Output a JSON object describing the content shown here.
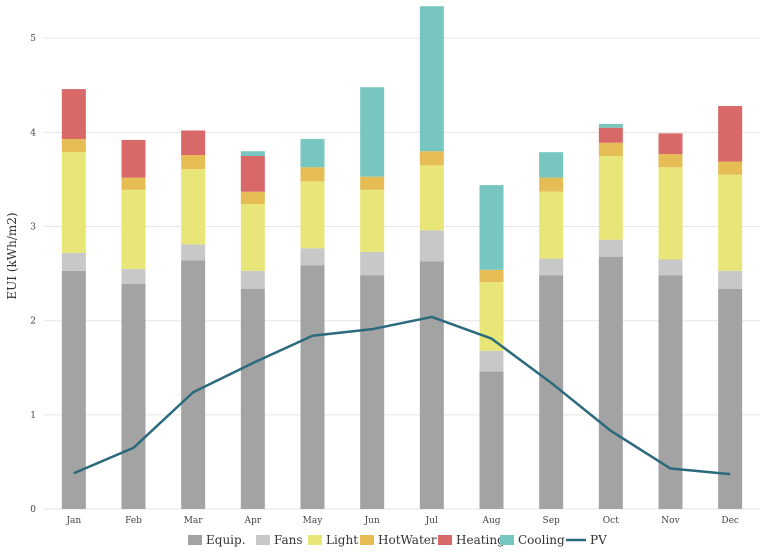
{
  "chart_data": {
    "type": "bar",
    "stacked": true,
    "title": "",
    "xlabel": "",
    "ylabel": "EUI (kWh/m2)",
    "ylim": [
      0,
      5.3
    ],
    "yticks": [
      "0",
      "1",
      "2",
      "3",
      "4",
      "5"
    ],
    "grid": true,
    "legend_position": "bottom",
    "categories": [
      "Jan",
      "Feb",
      "Mar",
      "Apr",
      "May",
      "Jun",
      "Jul",
      "Aug",
      "Sep",
      "Oct",
      "Nov",
      "Dec"
    ],
    "series": [
      {
        "name": "Equip.",
        "color": "#a3a3a3",
        "values": [
          2.53,
          2.39,
          2.64,
          2.34,
          2.59,
          2.48,
          2.63,
          1.46,
          2.48,
          2.68,
          2.48,
          2.34
        ]
      },
      {
        "name": "Fans",
        "color": "#c8c8c8",
        "values": [
          0.19,
          0.16,
          0.17,
          0.19,
          0.18,
          0.25,
          0.33,
          0.22,
          0.18,
          0.18,
          0.17,
          0.19
        ]
      },
      {
        "name": "Light",
        "color": "#e8e678",
        "values": [
          1.07,
          0.84,
          0.8,
          0.71,
          0.71,
          0.66,
          0.69,
          0.73,
          0.71,
          0.89,
          0.98,
          1.02
        ]
      },
      {
        "name": "HotWater",
        "color": "#e6bd55",
        "values": [
          0.14,
          0.13,
          0.15,
          0.13,
          0.15,
          0.14,
          0.15,
          0.13,
          0.15,
          0.14,
          0.14,
          0.14
        ]
      },
      {
        "name": "Heating",
        "color": "#d96868",
        "values": [
          0.53,
          0.4,
          0.26,
          0.38,
          0.0,
          0.0,
          0.0,
          0.0,
          0.0,
          0.16,
          0.22,
          0.59
        ]
      },
      {
        "name": "Cooling",
        "color": "#77c6bf",
        "values": [
          0.0,
          0.0,
          0.0,
          0.05,
          0.3,
          0.95,
          1.54,
          0.9,
          0.27,
          0.04,
          0.0,
          0.0
        ]
      }
    ],
    "line_series": {
      "name": "PV",
      "color": "#2b6a7d",
      "values": [
        0.38,
        0.65,
        1.24,
        1.55,
        1.84,
        1.91,
        2.04,
        1.81,
        1.34,
        0.83,
        0.43,
        0.37
      ]
    }
  }
}
